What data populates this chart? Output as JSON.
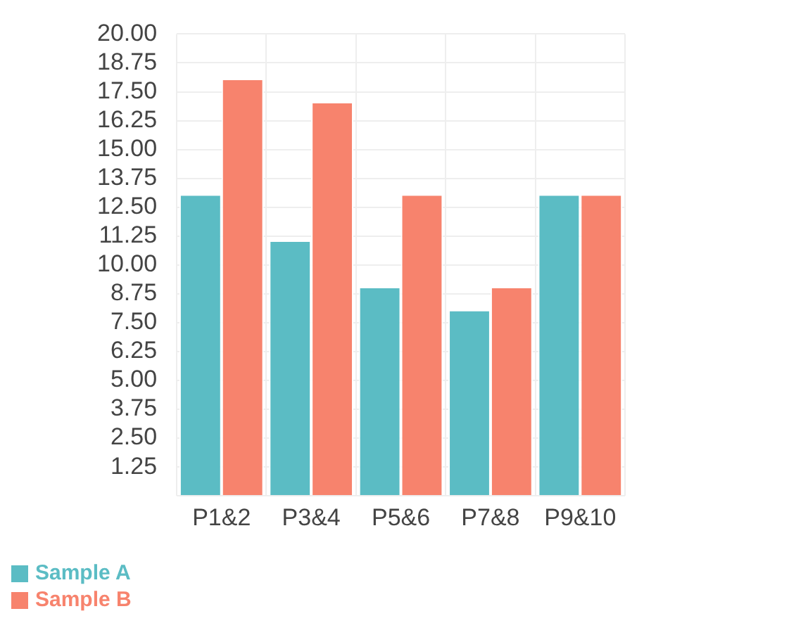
{
  "chart_data": {
    "type": "bar",
    "categories": [
      "P1&2",
      "P3&4",
      "P5&6",
      "P7&8",
      "P9&10"
    ],
    "series": [
      {
        "name": "Sample A",
        "color": "#5bbcc4",
        "values": [
          13,
          11,
          9,
          8,
          13
        ]
      },
      {
        "name": "Sample B",
        "color": "#f7836d",
        "values": [
          18,
          17,
          13,
          9,
          13
        ]
      }
    ],
    "ylim": [
      0,
      20
    ],
    "yticks": [
      {
        "value": 0,
        "label": null
      },
      1.25,
      {
        "value": 2.5,
        "label": "2.50"
      },
      3.75,
      {
        "value": 5,
        "label": "5.00"
      },
      6.25,
      {
        "value": 7.5,
        "label": "7.50"
      },
      8.75,
      {
        "value": 10,
        "label": "10.00"
      },
      11.25,
      {
        "value": 12.5,
        "label": "12.50"
      },
      13.75,
      {
        "value": 15,
        "label": "15.00"
      },
      16.25,
      {
        "value": 17.5,
        "label": "17.50"
      },
      18.75,
      {
        "value": 20,
        "label": "20.00"
      }
    ],
    "grid": true,
    "legend": "bottom left"
  }
}
